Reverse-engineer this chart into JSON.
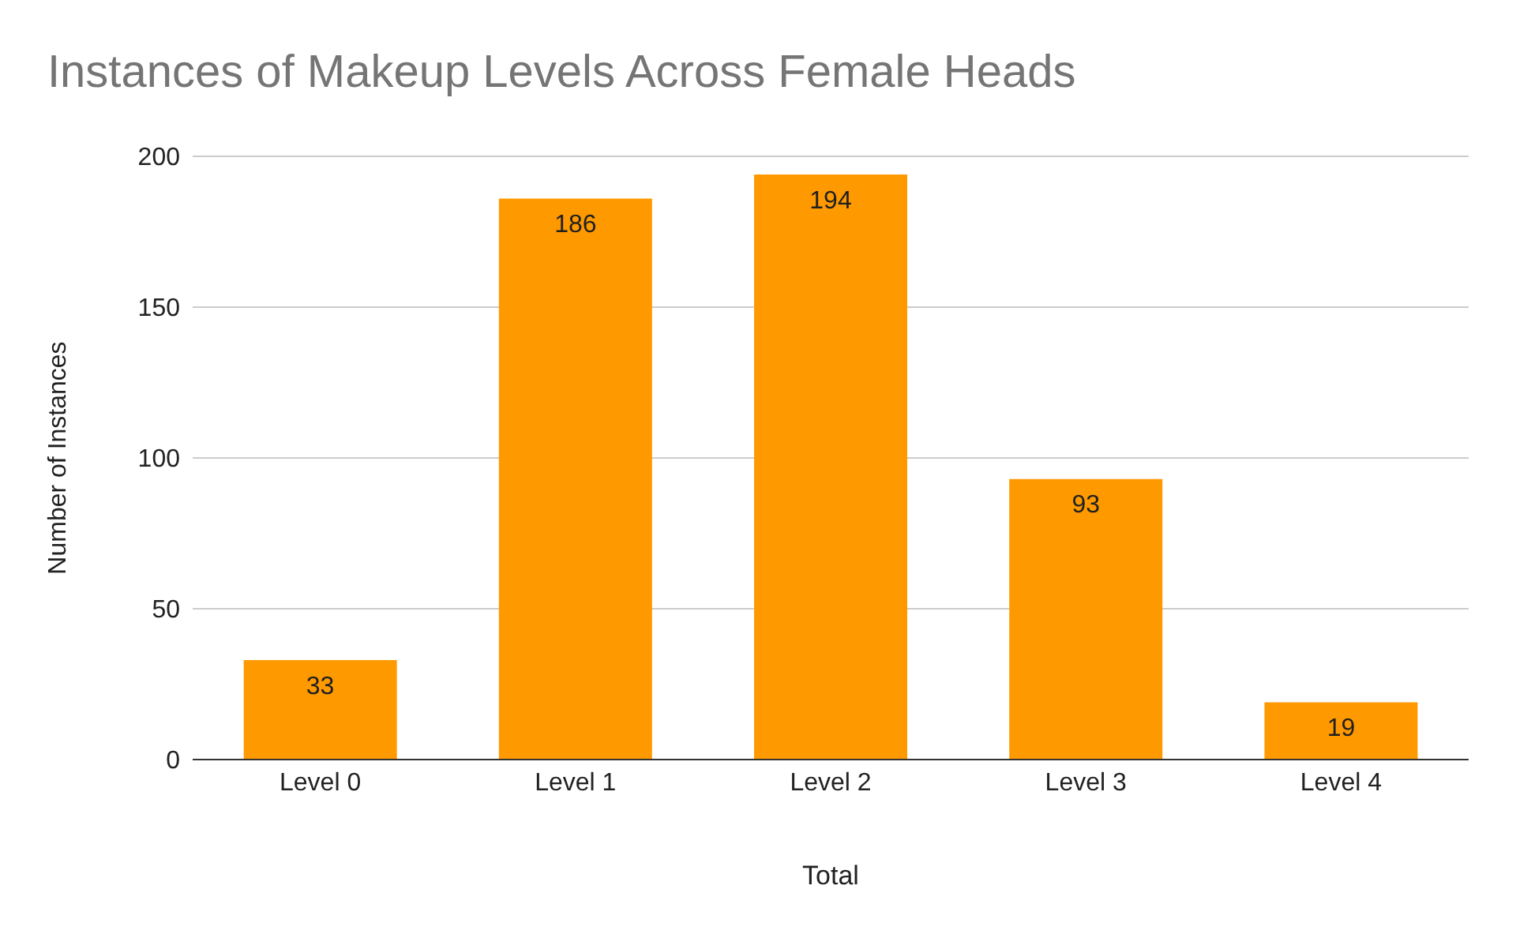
{
  "chart_data": {
    "type": "bar",
    "title": "Instances of Makeup Levels Across Female Heads",
    "xlabel": "Total",
    "ylabel": "Number of Instances",
    "categories": [
      "Level 0",
      "Level 1",
      "Level 2",
      "Level 3",
      "Level 4"
    ],
    "values": [
      33,
      186,
      194,
      93,
      19
    ],
    "color": "#ff9900",
    "ylim": [
      0,
      200
    ],
    "yticks": [
      0,
      50,
      100,
      150,
      200
    ],
    "grid": "y",
    "data_labels": true,
    "legend": false
  }
}
